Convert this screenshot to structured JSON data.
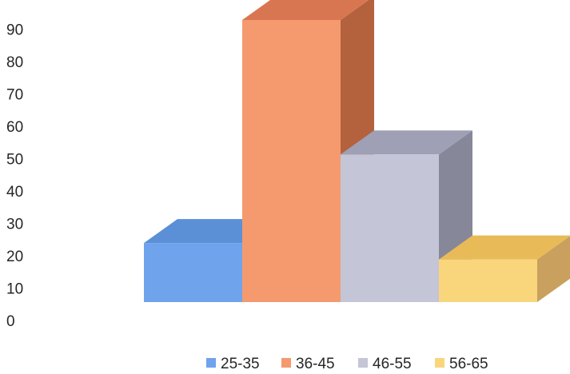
{
  "chart_data": {
    "type": "bar",
    "style": "3d-columns",
    "categories": [
      "25-35",
      "36-45",
      "46-55",
      "56-65"
    ],
    "values": [
      18,
      86,
      45,
      13
    ],
    "colors": {
      "25-35": {
        "front": "#6fa3ec",
        "top": "#5b8fd6",
        "side": "#4a74b4"
      },
      "36-45": {
        "front": "#f49a6e",
        "top": "#d97652",
        "side": "#b4623e"
      },
      "46-55": {
        "front": "#c4c5d6",
        "top": "#9fa0b6",
        "side": "#868799"
      },
      "56-65": {
        "front": "#f9d57c",
        "top": "#e8bb58",
        "side": "#c9a05d"
      }
    },
    "y_ticks": [
      "0",
      "10",
      "20",
      "30",
      "40",
      "50",
      "60",
      "70",
      "80",
      "90"
    ],
    "ylim": [
      0,
      90
    ],
    "title": "",
    "xlabel": "",
    "ylabel": "",
    "grid": false,
    "legend": {
      "position": "bottom",
      "entries": [
        "25-35",
        "36-45",
        "46-55",
        "56-65"
      ]
    }
  }
}
